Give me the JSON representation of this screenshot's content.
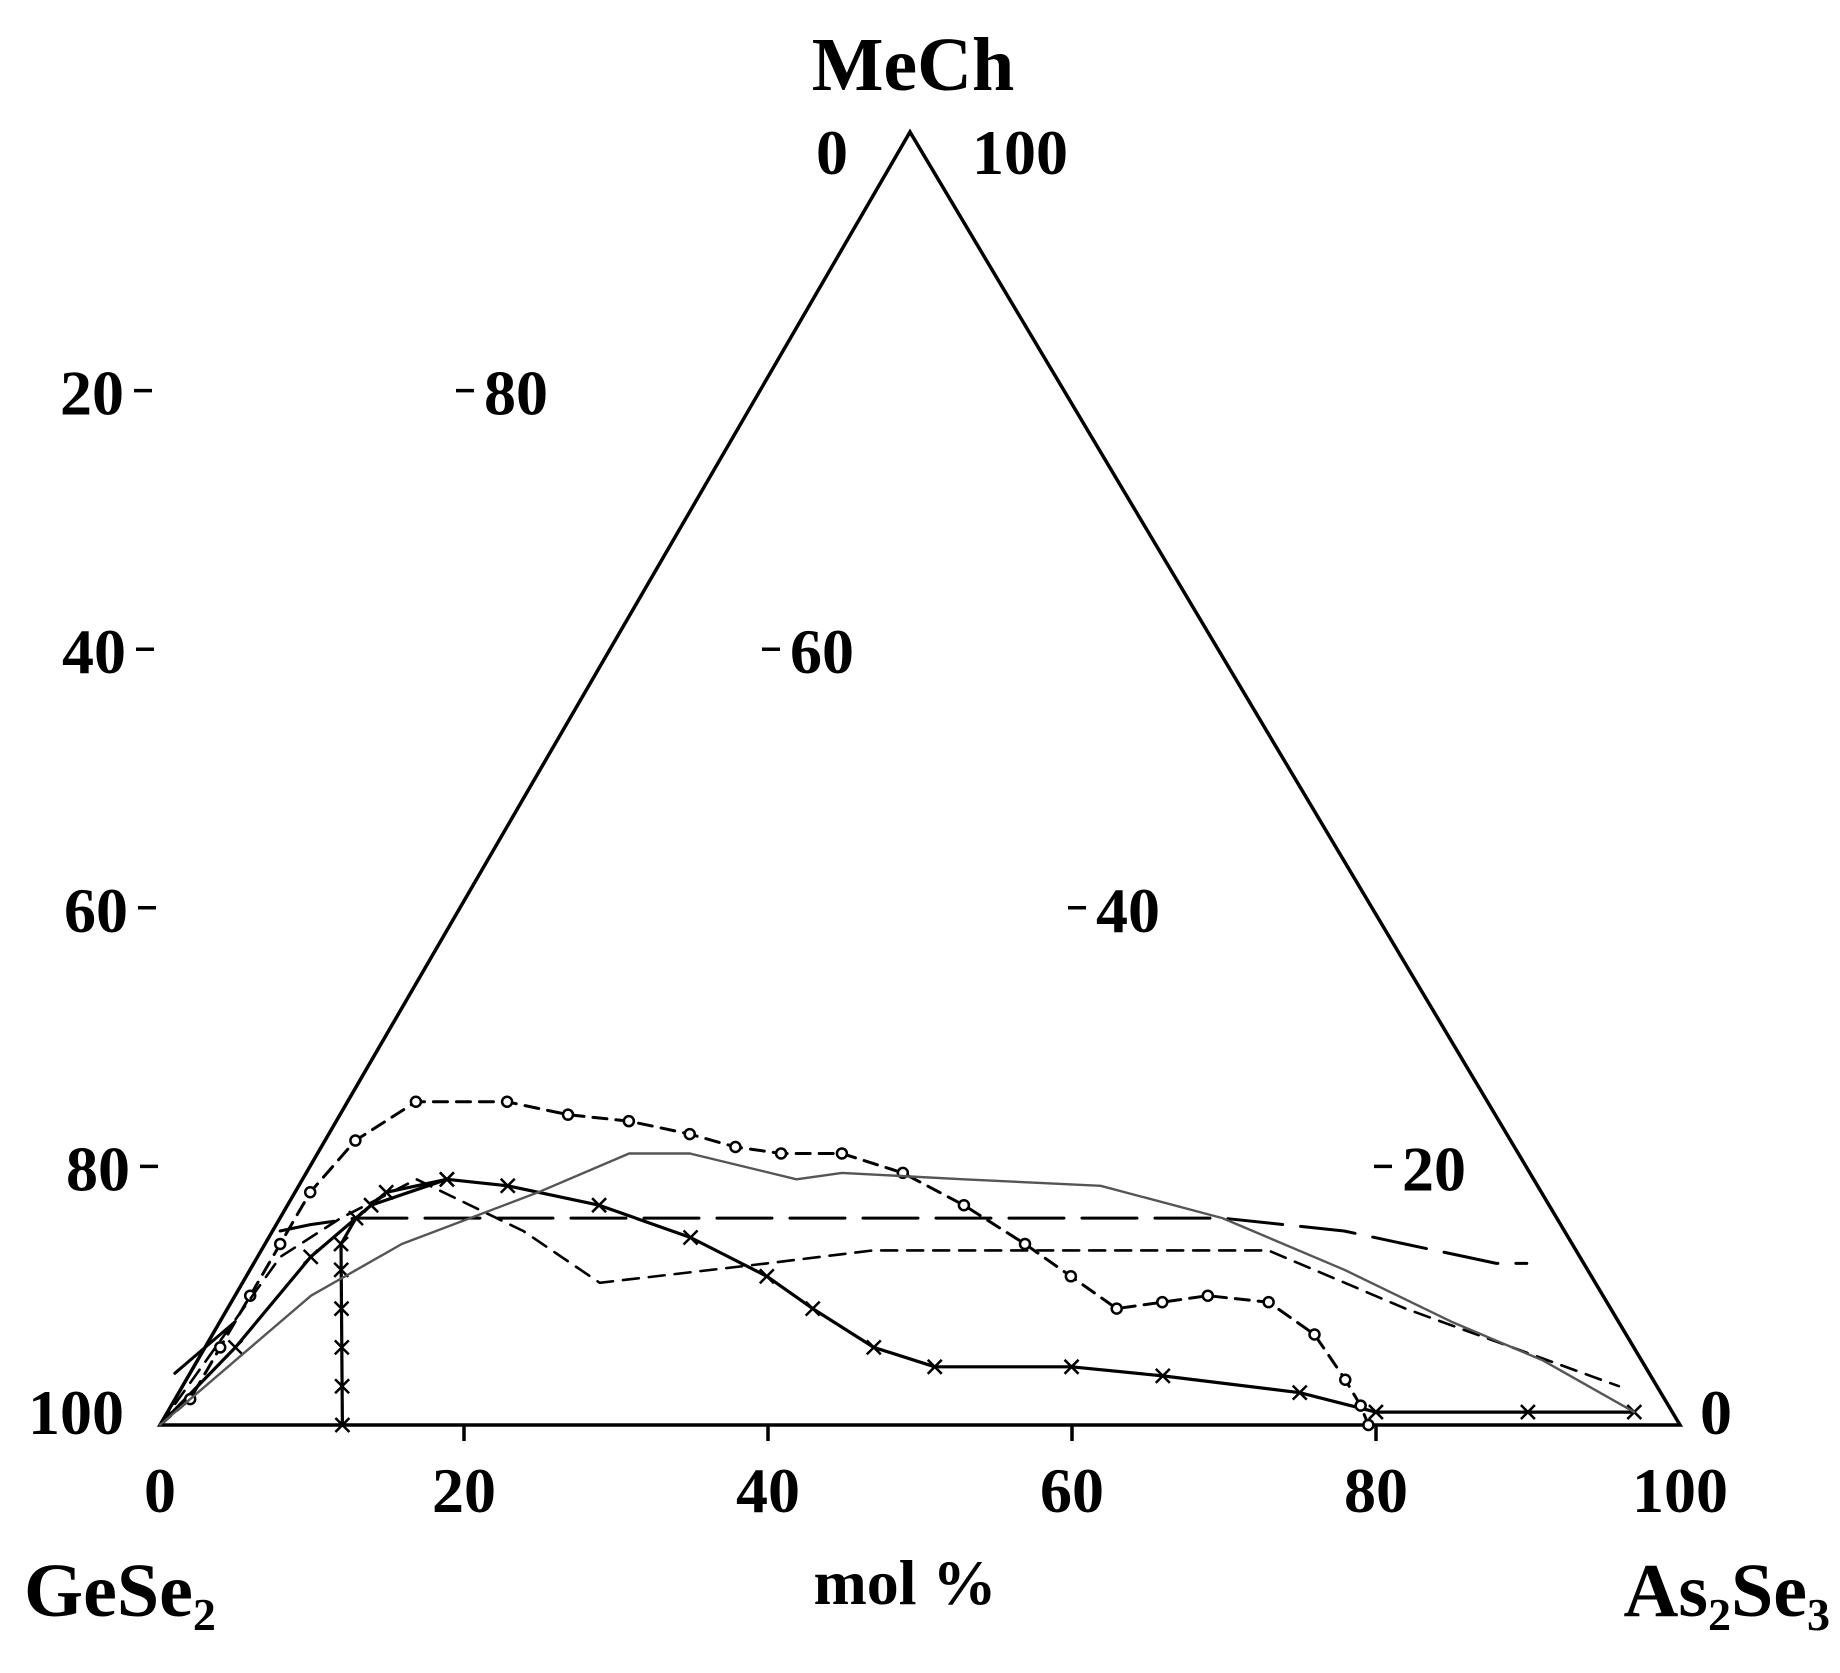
{
  "chart_data": {
    "type": "ternary",
    "vertices": {
      "top": "MeCh",
      "left": {
        "base": "GeSe",
        "sub": "2"
      },
      "right": [
        {
          "base": "As",
          "sub": "2"
        },
        {
          "base": "Se",
          "sub": "3"
        }
      ]
    },
    "axis_label": "mol %",
    "top_labels": {
      "left": "0",
      "right": "100"
    },
    "corner_labels": {
      "left": "100",
      "right": "0"
    },
    "left_edge_ticks": [
      "20",
      "40",
      "60",
      "80"
    ],
    "right_edge_ticks": [
      "80",
      "60",
      "40",
      "20"
    ],
    "bottom_ticks": [
      "0",
      "20",
      "40",
      "60",
      "80",
      "100"
    ],
    "series": [
      {
        "style": "solid-x",
        "points": [
          [
            0,
            0
          ],
          [
            5,
            6
          ],
          [
            10,
            13
          ],
          [
            14,
            17
          ],
          [
            19,
            19
          ],
          [
            23,
            18.5
          ],
          [
            29,
            17
          ],
          [
            35,
            14.5
          ],
          [
            40,
            11.5
          ],
          [
            43,
            9
          ],
          [
            47,
            6
          ],
          [
            51,
            4.5
          ],
          [
            60,
            4.5
          ],
          [
            66,
            3.8
          ],
          [
            75,
            2.5
          ],
          [
            80,
            1
          ],
          [
            90,
            1
          ],
          [
            97,
            1
          ]
        ]
      },
      {
        "style": "solid-x",
        "points": [
          [
            12,
            0
          ],
          [
            12,
            3
          ],
          [
            12,
            6
          ],
          [
            12,
            9
          ],
          [
            12,
            12
          ],
          [
            12,
            14
          ],
          [
            13,
            16
          ],
          [
            15,
            18
          ],
          [
            19,
            19
          ]
        ]
      },
      {
        "style": "dashed-o",
        "points": [
          [
            0,
            0
          ],
          [
            2,
            2
          ],
          [
            4,
            6
          ],
          [
            6,
            10
          ],
          [
            8,
            14
          ],
          [
            10,
            18
          ],
          [
            13,
            22
          ],
          [
            17,
            25
          ],
          [
            23,
            25
          ],
          [
            27,
            24
          ],
          [
            31,
            23.5
          ],
          [
            35,
            22.5
          ],
          [
            38,
            21.5
          ],
          [
            41,
            21
          ],
          [
            45,
            21
          ],
          [
            49,
            19.5
          ],
          [
            53,
            17
          ],
          [
            57,
            14
          ],
          [
            60,
            11.5
          ],
          [
            63,
            9
          ],
          [
            66,
            9.5
          ],
          [
            69,
            10
          ],
          [
            73,
            9.5
          ],
          [
            76,
            7
          ],
          [
            78,
            3.5
          ],
          [
            79,
            1.5
          ],
          [
            79.5,
            0
          ]
        ]
      },
      {
        "style": "dashed",
        "points": [
          [
            0,
            0
          ],
          [
            8,
            13
          ],
          [
            12,
            16
          ],
          [
            17,
            19
          ],
          [
            24,
            15
          ],
          [
            29,
            11
          ],
          [
            40,
            12.5
          ],
          [
            47,
            13.5
          ],
          [
            60,
            13.5
          ],
          [
            73,
            13.5
          ],
          [
            82,
            9
          ],
          [
            96,
            3
          ]
        ]
      },
      {
        "style": "long-dash",
        "points": [
          [
            8,
            15
          ],
          [
            10,
            15.5
          ],
          [
            13,
            16
          ],
          [
            16,
            16
          ],
          [
            19,
            16
          ],
          [
            24,
            16
          ],
          [
            32,
            16
          ],
          [
            40,
            16
          ],
          [
            48,
            16
          ],
          [
            56,
            16
          ],
          [
            64,
            16
          ],
          [
            70,
            16
          ],
          [
            78,
            15
          ],
          [
            82,
            14
          ],
          [
            86,
            13
          ],
          [
            88,
            12.5
          ],
          [
            90,
            12.5
          ]
        ]
      },
      {
        "style": "thin-gray",
        "points": [
          [
            0,
            0
          ],
          [
            5,
            5
          ],
          [
            10,
            10
          ],
          [
            16,
            14
          ],
          [
            25,
            18
          ],
          [
            31,
            21
          ],
          [
            35,
            21
          ],
          [
            42,
            19
          ],
          [
            45,
            19.5
          ],
          [
            53,
            19
          ],
          [
            62,
            18.5
          ],
          [
            70,
            16
          ],
          [
            78,
            12
          ],
          [
            85,
            8
          ],
          [
            91,
            5
          ],
          [
            97,
            1
          ]
        ]
      },
      {
        "style": "short-solid",
        "points": [
          [
            1,
            4
          ],
          [
            5,
            8
          ]
        ]
      }
    ]
  }
}
